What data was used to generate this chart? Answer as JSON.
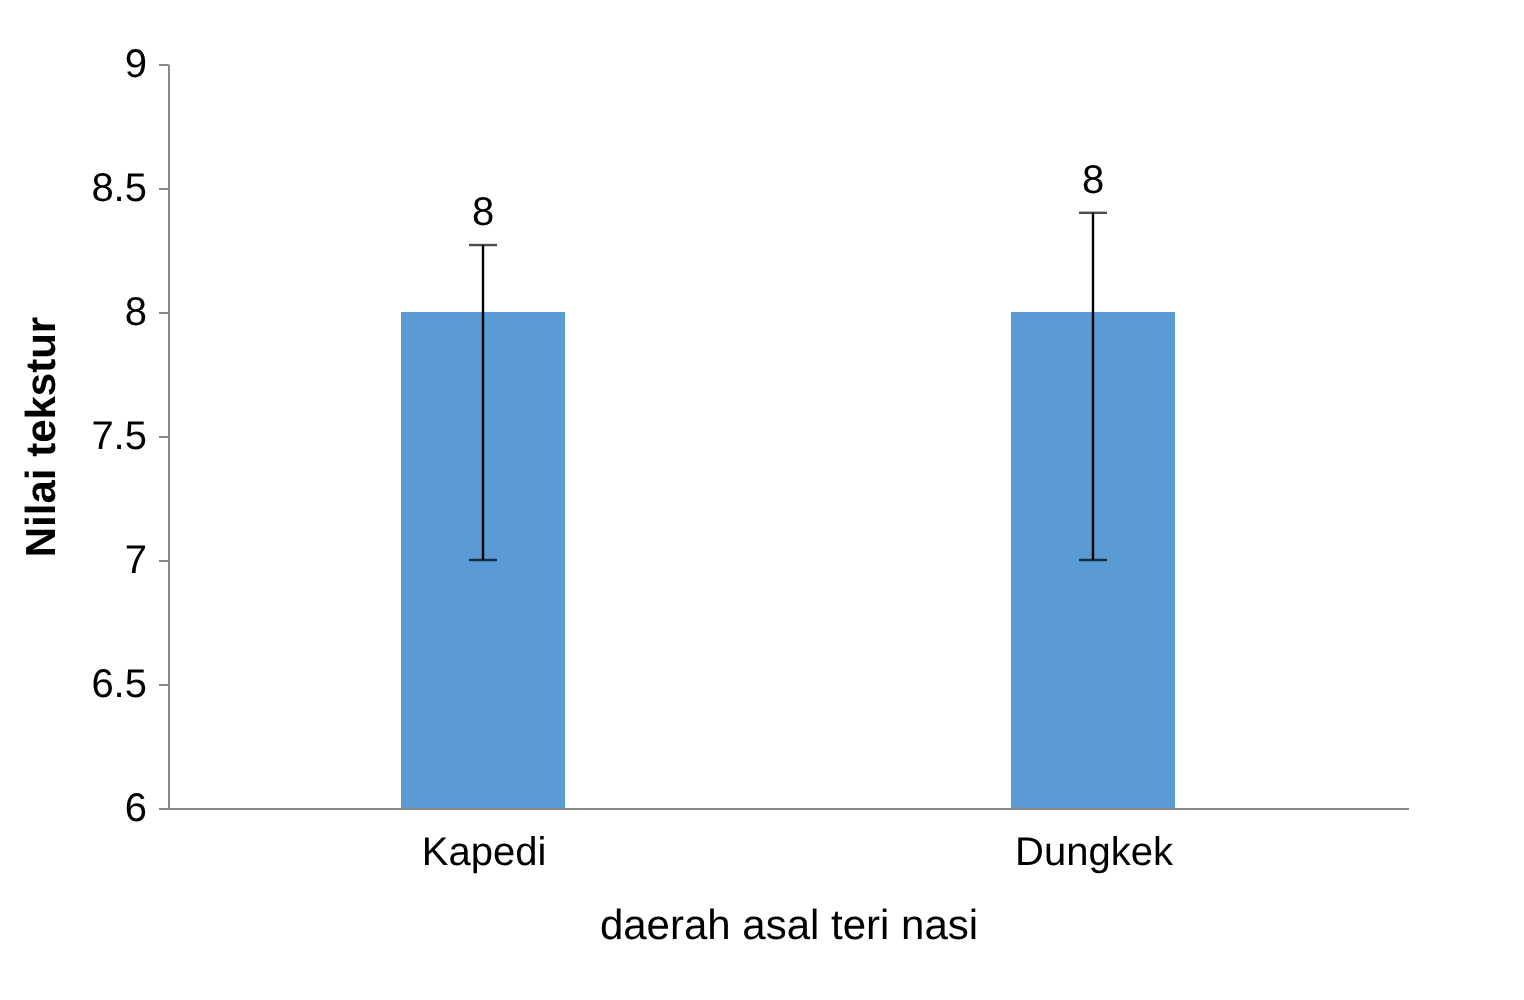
{
  "chart_data": {
    "type": "bar",
    "xlabel": "daerah asal teri nasi",
    "ylabel": "Nilai tekstur",
    "categories": [
      "Kapedi",
      "Dungkek"
    ],
    "values": [
      8,
      8
    ],
    "color": "#5b9bd5",
    "errors": [
      [
        7,
        8.27
      ],
      [
        7,
        8.4
      ]
    ],
    "data_labels": true,
    "ylim": [
      6,
      9
    ],
    "yticks": [
      6,
      6.5,
      7,
      7.5,
      8,
      8.5,
      9
    ],
    "grid": false
  }
}
